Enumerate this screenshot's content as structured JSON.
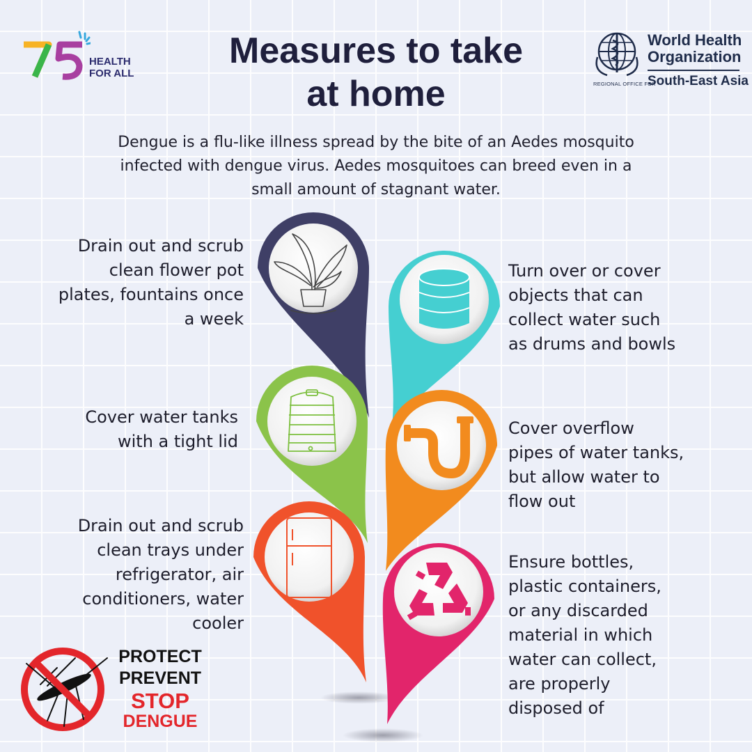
{
  "title_lines": [
    "Measures to take",
    "at home"
  ],
  "intro_lines": [
    "Dengue is a flu-like illness spread by the bite of an Aedes mosquito",
    "infected with dengue virus. Aedes mosquitoes can breed even in a",
    "small amount of stagnant water."
  ],
  "logo75": {
    "number": "75",
    "line1": "HEALTH",
    "line2": "FOR ALL"
  },
  "who": {
    "line1": "World Health",
    "line2": "Organization",
    "sub_small": "REGIONAL OFFICE FOR",
    "sub_big": "South-East Asia"
  },
  "measures": [
    {
      "id": "flower-pot",
      "icon": "potted-plant-icon",
      "color": "#3f3f66",
      "lines": [
        "Drain out and scrub",
        "clean flower pot",
        "plates, fountains once",
        "a week"
      ]
    },
    {
      "id": "drums",
      "icon": "drum-icon",
      "color": "#45cfd1",
      "lines": [
        "Turn over or cover",
        "objects that can",
        "collect water such",
        "as drums and bowls"
      ]
    },
    {
      "id": "water-tank",
      "icon": "water-tank-icon",
      "color": "#8bc34a",
      "lines": [
        "Cover water tanks",
        "with a tight lid"
      ]
    },
    {
      "id": "overflow-pipes",
      "icon": "pipe-icon",
      "color": "#f28b1e",
      "lines": [
        "Cover overflow",
        "pipes of water tanks,",
        "but allow water to",
        "flow out"
      ]
    },
    {
      "id": "refrigerator",
      "icon": "refrigerator-icon",
      "color": "#f0522b",
      "lines": [
        "Drain out and scrub",
        "clean trays under",
        "refrigerator, air",
        "conditioners, water",
        "cooler"
      ]
    },
    {
      "id": "bottles",
      "icon": "recycle-bottles-icon",
      "color": "#e2256b",
      "lines": [
        "Ensure bottles,",
        "plastic containers,",
        "or any discarded",
        "material in which",
        "water can collect,",
        "are properly",
        "disposed of"
      ]
    }
  ],
  "badge": {
    "line1": "PROTECT",
    "line2": "PREVENT",
    "line3": "STOP",
    "line4": "DENGUE",
    "dark_color": "#111111",
    "red_color": "#e3262b"
  }
}
